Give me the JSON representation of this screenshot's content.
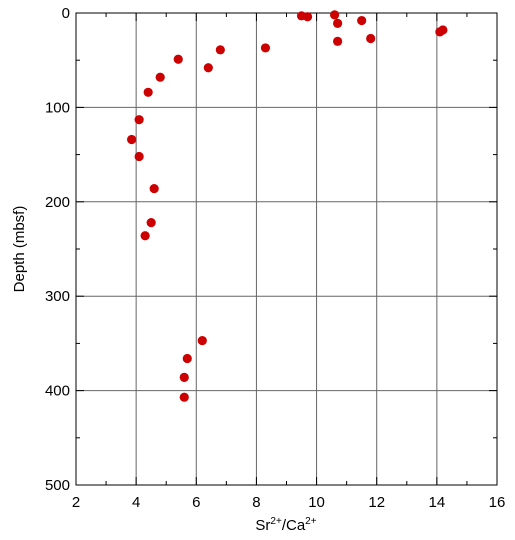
{
  "chart_data": {
    "type": "scatter",
    "xlabel": {
      "base1": "Sr",
      "sup1": "2+",
      "slash": "/",
      "base2": "Ca",
      "sup2": "2+"
    },
    "ylabel": "Depth (mbsf)",
    "xlim": [
      2,
      16
    ],
    "ylim": [
      0,
      500
    ],
    "y_inverted": true,
    "x_ticks": [
      "2",
      "4",
      "6",
      "8",
      "10",
      "12",
      "14",
      "16"
    ],
    "y_ticks": [
      "0",
      "100",
      "200",
      "300",
      "400",
      "500"
    ],
    "grid": true,
    "marker_color": "#cc0000",
    "points": [
      {
        "x": 9.5,
        "y": 3
      },
      {
        "x": 9.7,
        "y": 4
      },
      {
        "x": 10.6,
        "y": 2
      },
      {
        "x": 11.5,
        "y": 8
      },
      {
        "x": 10.7,
        "y": 11
      },
      {
        "x": 14.2,
        "y": 18
      },
      {
        "x": 14.1,
        "y": 20
      },
      {
        "x": 11.8,
        "y": 27
      },
      {
        "x": 10.7,
        "y": 30
      },
      {
        "x": 8.3,
        "y": 37
      },
      {
        "x": 6.8,
        "y": 39
      },
      {
        "x": 5.4,
        "y": 49
      },
      {
        "x": 6.4,
        "y": 58
      },
      {
        "x": 4.8,
        "y": 68
      },
      {
        "x": 4.4,
        "y": 84
      },
      {
        "x": 4.1,
        "y": 113
      },
      {
        "x": 3.85,
        "y": 134
      },
      {
        "x": 4.1,
        "y": 152
      },
      {
        "x": 4.6,
        "y": 186
      },
      {
        "x": 4.5,
        "y": 222
      },
      {
        "x": 4.3,
        "y": 236
      },
      {
        "x": 6.2,
        "y": 347
      },
      {
        "x": 5.7,
        "y": 366
      },
      {
        "x": 5.6,
        "y": 386
      },
      {
        "x": 5.6,
        "y": 407
      }
    ]
  }
}
